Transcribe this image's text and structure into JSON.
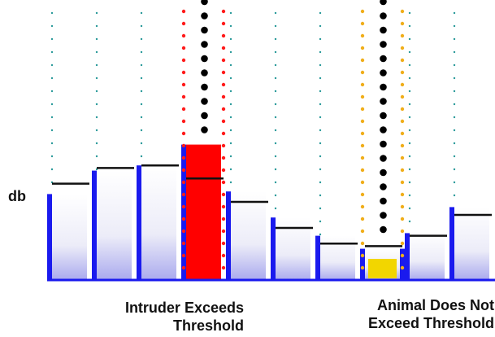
{
  "y_axis_label": "db",
  "captions": {
    "left": [
      "Intruder Exceeds",
      "Threshold"
    ],
    "right": [
      "Animal Does Not",
      "Exceed Threshold"
    ]
  },
  "colors": {
    "bar_blue": "#1a1aee",
    "intruder_red": "#ff0000",
    "animal_yellow": "#f2d600",
    "threshold_line": "#111111",
    "grid_dot": "#2a9a9a",
    "intruder_dot": "#ff1a1a",
    "animal_dot": "#f0ae1a",
    "trail_dot": "#000000"
  },
  "bins": [
    {
      "signal": 33,
      "threshold": 37,
      "kind": "normal"
    },
    {
      "signal": 42,
      "threshold": 43,
      "kind": "normal"
    },
    {
      "signal": 44,
      "threshold": 44,
      "kind": "normal"
    },
    {
      "signal": 52,
      "threshold": 39,
      "kind": "intruder"
    },
    {
      "signal": 34,
      "threshold": 30,
      "kind": "normal"
    },
    {
      "signal": 24,
      "threshold": 20,
      "kind": "normal"
    },
    {
      "signal": 17,
      "threshold": 14,
      "kind": "normal"
    },
    {
      "signal": 12,
      "threshold": 13,
      "kind": "animal"
    },
    {
      "signal": 18,
      "threshold": 17,
      "kind": "normal"
    },
    {
      "signal": 28,
      "threshold": 25,
      "kind": "normal"
    }
  ],
  "trails": {
    "intruder_bin": 3,
    "animal_bin": 7
  }
}
